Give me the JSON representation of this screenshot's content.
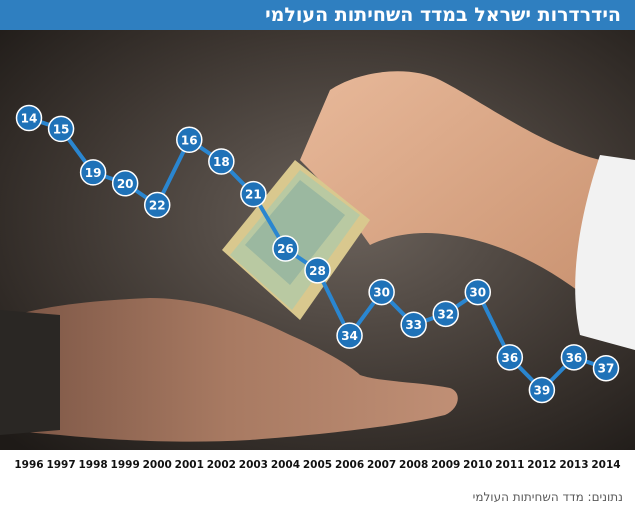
{
  "header": {
    "title": "הידרדרות ישראל במדד השחיתות העולמי"
  },
  "footer": {
    "source": "נתונים: מדד השחיתות העולמי"
  },
  "colors": {
    "accent": "#2f7fc0",
    "marker": "#1f72b8",
    "line": "#2a86d0"
  },
  "chart_data": {
    "type": "line",
    "title": "הידרדרות ישראל במדד השחיתות העולמי",
    "xlabel": "",
    "ylabel": "",
    "categories": [
      "1996",
      "1997",
      "1998",
      "1999",
      "2000",
      "2001",
      "2002",
      "2003",
      "2004",
      "2005",
      "2006",
      "2007",
      "2008",
      "2009",
      "2010",
      "2011",
      "2012",
      "2013",
      "2014"
    ],
    "values": [
      14,
      15,
      19,
      20,
      22,
      16,
      18,
      21,
      26,
      28,
      34,
      30,
      33,
      32,
      30,
      36,
      39,
      36,
      37
    ],
    "ylim": [
      14,
      39
    ],
    "y_inverted": true,
    "grid": false,
    "legend": "none"
  }
}
